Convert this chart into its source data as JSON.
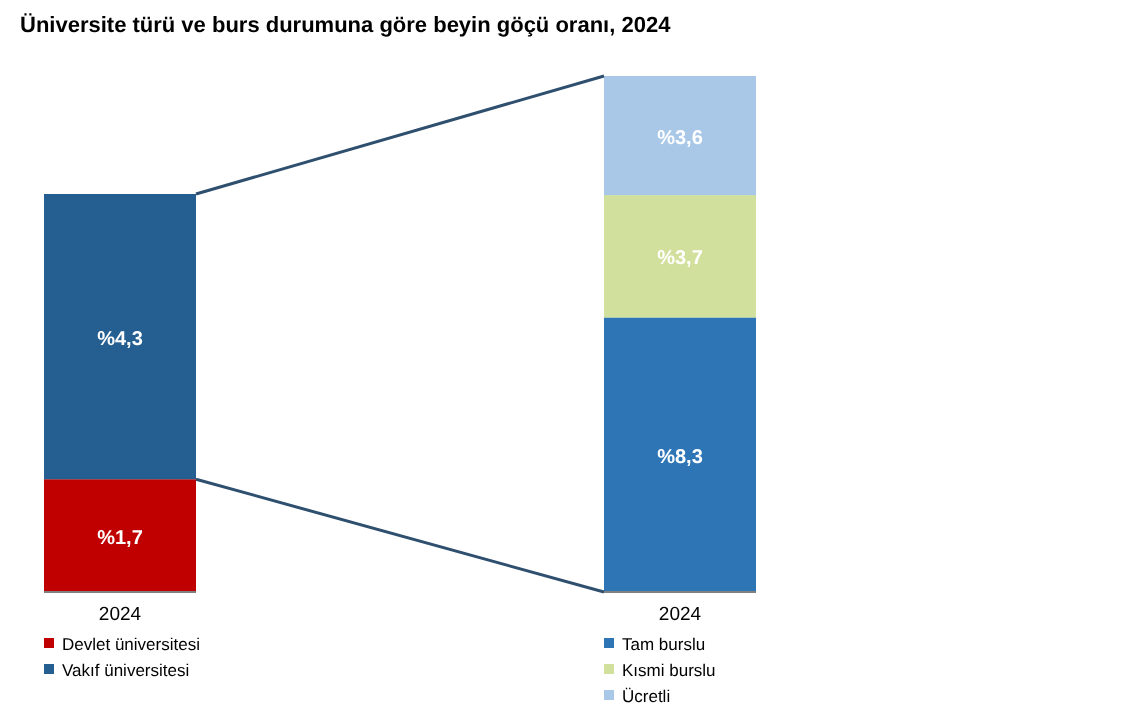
{
  "chart_data": [
    {
      "type": "bar",
      "title": "Üniversite türü ve burs durumuna göre beyin göçü oranı, 2024",
      "categories": [
        "2024"
      ],
      "stacked": true,
      "tick_labels": "x",
      "legend": "bottom",
      "series": [
        {
          "name": "Devlet üniversitesi",
          "color": "#c00000",
          "values": [
            1.7
          ],
          "value_labels": [
            "%1,7"
          ]
        },
        {
          "name": "Vakıf üniversitesi",
          "color": "#255e91",
          "values": [
            4.3
          ],
          "value_labels": [
            "%4,3"
          ]
        }
      ]
    },
    {
      "type": "bar",
      "categories": [
        "2024"
      ],
      "stacked": true,
      "tick_labels": "x",
      "legend": "bottom",
      "series": [
        {
          "name": "Tam burslu",
          "color": "#2e75b6",
          "values": [
            8.3
          ],
          "value_labels": [
            "%8,3"
          ]
        },
        {
          "name": "Kısmi burslu",
          "color": "#d1e09c",
          "values": [
            3.7
          ],
          "value_labels": [
            "%3,7"
          ]
        },
        {
          "name": "Ücretli",
          "color": "#a9c8e8",
          "values": [
            3.6
          ],
          "value_labels": [
            "%3,6"
          ]
        }
      ]
    }
  ]
}
